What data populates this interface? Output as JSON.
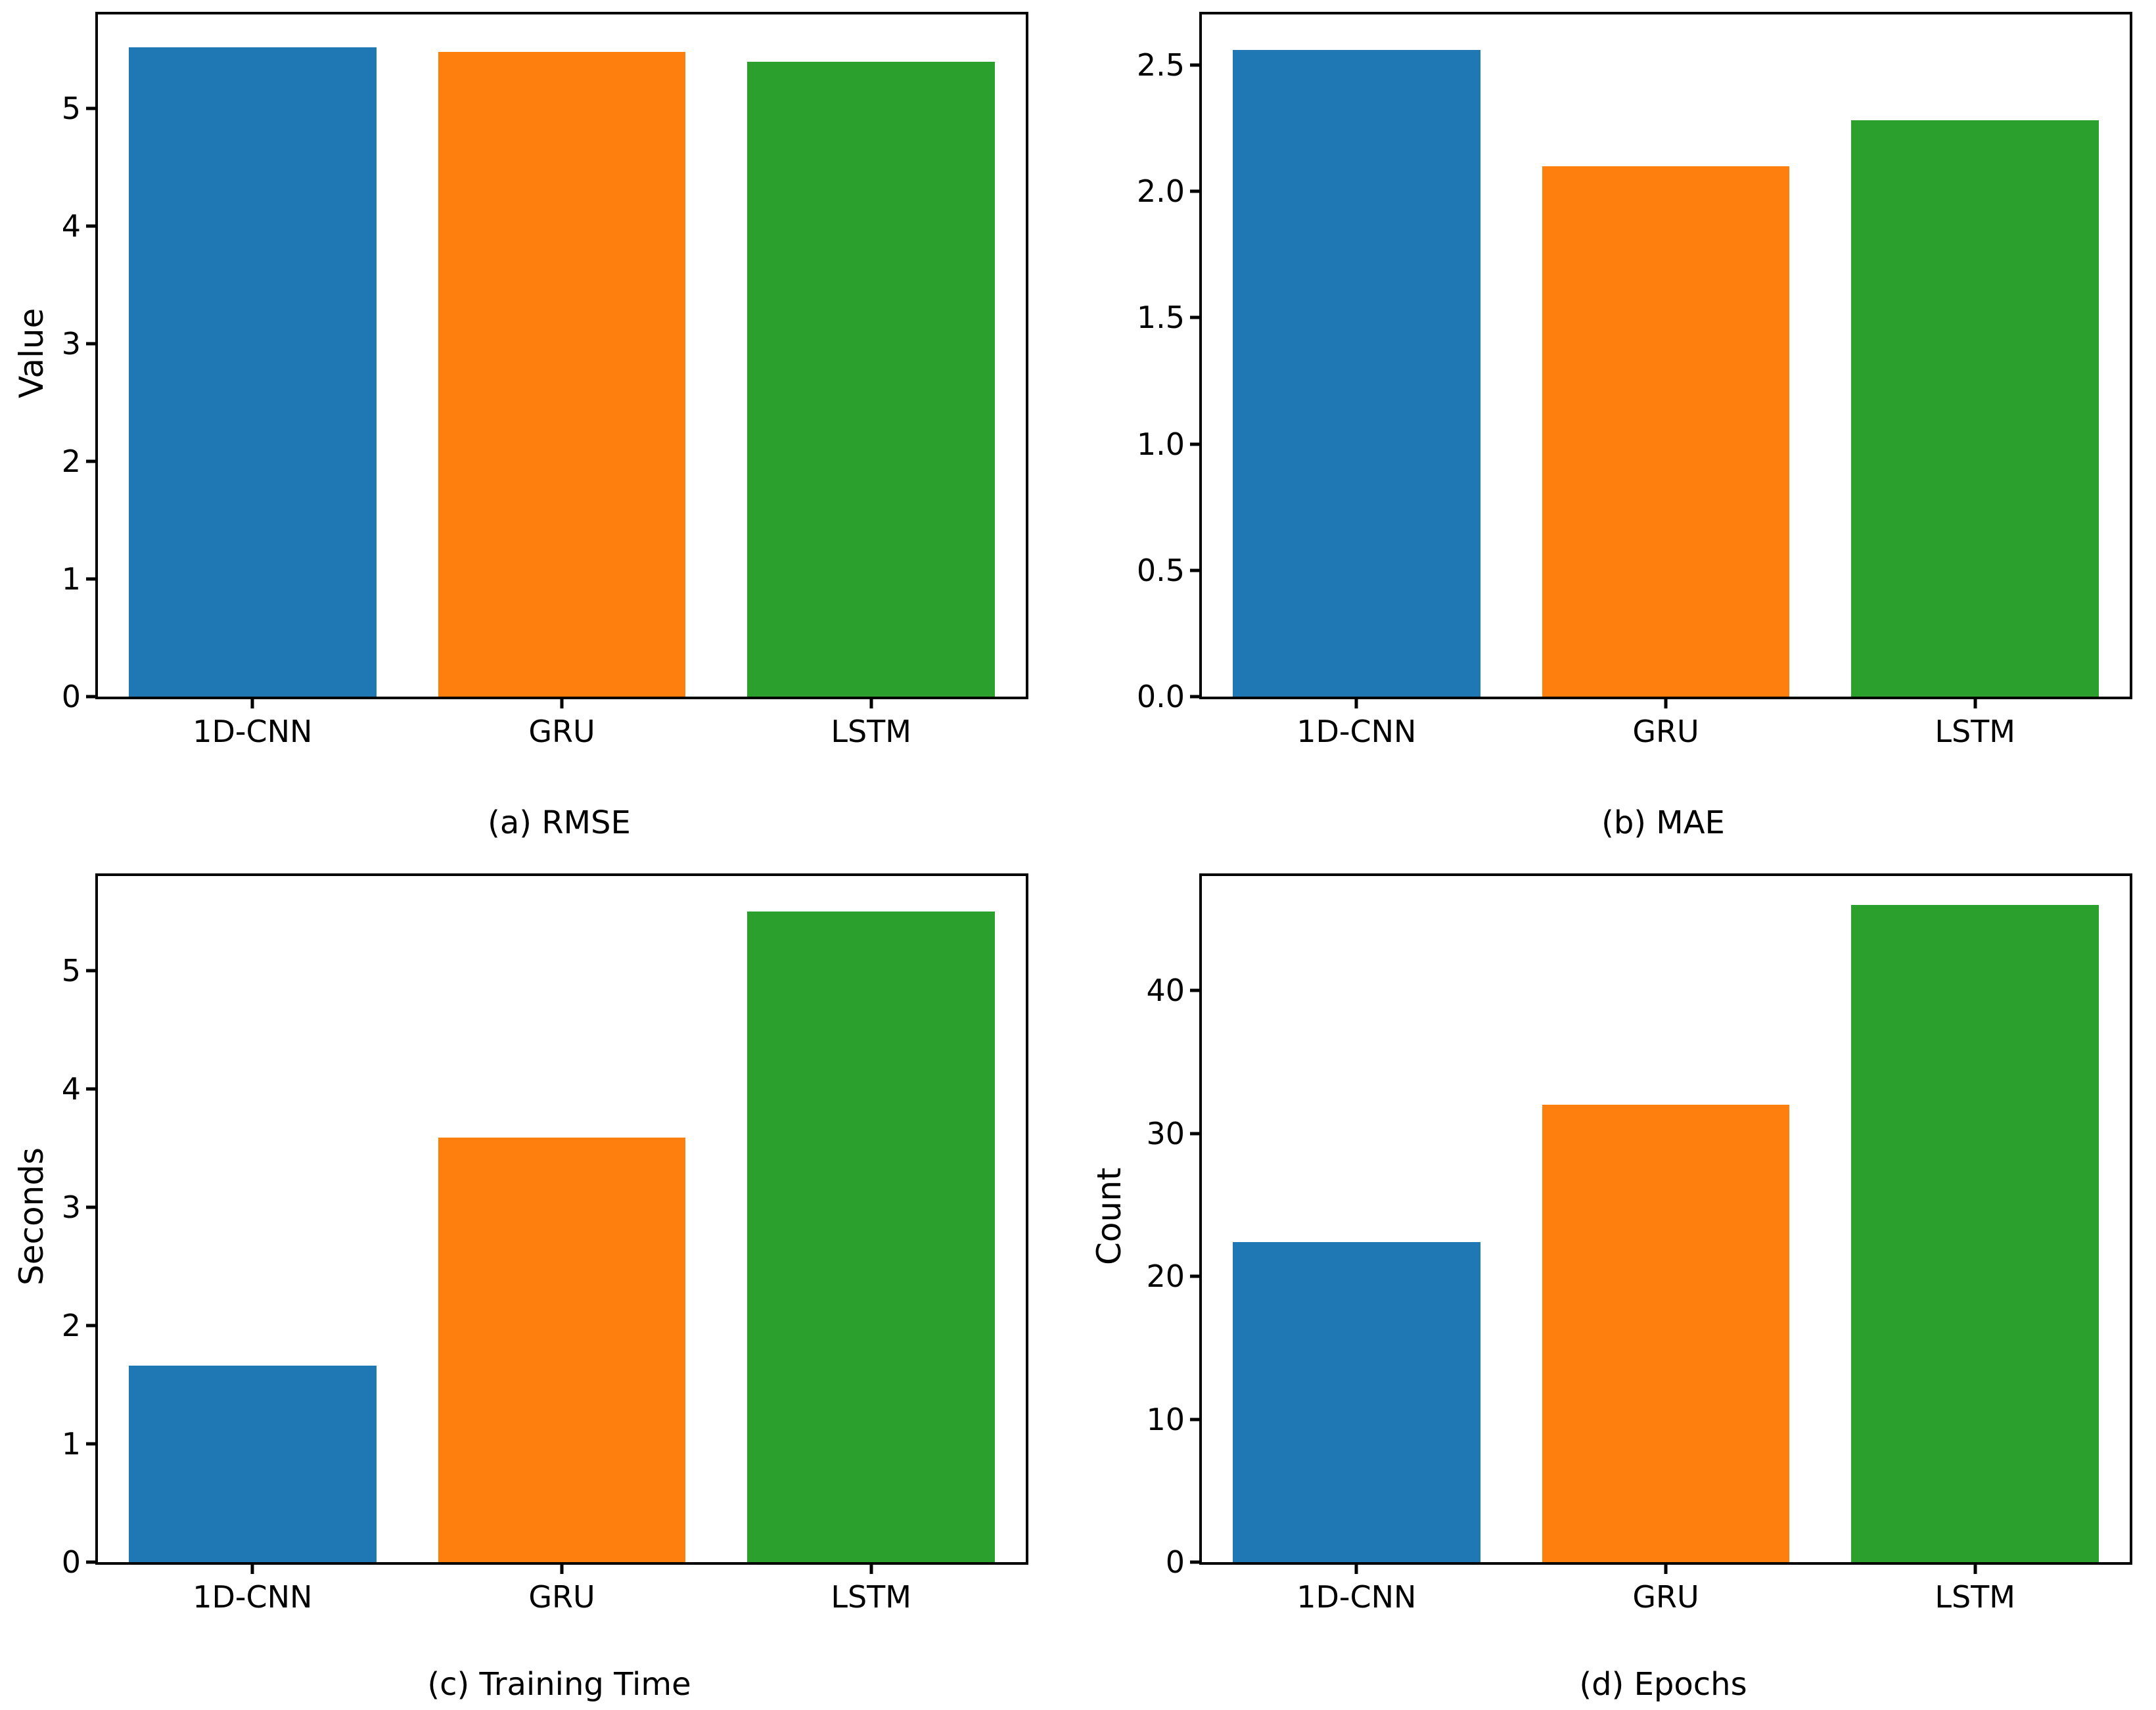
{
  "figure": {
    "background": "#ffffff",
    "text_color": "#000000",
    "layout": "2x2-grid-of-bar-charts"
  },
  "palette": {
    "blue": "#1f77b4",
    "orange": "#ff7f0e",
    "green": "#2ca02c"
  },
  "chart_data": [
    {
      "type": "bar",
      "panel": "a",
      "caption": "(a) RMSE",
      "ylabel": "Value",
      "xlabel": "",
      "categories": [
        "1D-CNN",
        "GRU",
        "LSTM"
      ],
      "values": [
        5.52,
        5.48,
        5.4
      ],
      "ylim": [
        0,
        5.8
      ],
      "yticks": [
        {
          "v": 0,
          "label": "0"
        },
        {
          "v": 1,
          "label": "1"
        },
        {
          "v": 2,
          "label": "2"
        },
        {
          "v": 3,
          "label": "3"
        },
        {
          "v": 4,
          "label": "4"
        },
        {
          "v": 5,
          "label": "5"
        }
      ],
      "bar_colors": [
        "#1f77b4",
        "#ff7f0e",
        "#2ca02c"
      ],
      "bar_width": 0.8,
      "grid": false,
      "legend": null
    },
    {
      "type": "bar",
      "panel": "b",
      "caption": "(b) MAE",
      "ylabel": "",
      "xlabel": "",
      "categories": [
        "1D-CNN",
        "GRU",
        "LSTM"
      ],
      "values": [
        2.56,
        2.1,
        2.28
      ],
      "ylim": [
        0,
        2.7
      ],
      "yticks": [
        {
          "v": 0,
          "label": "0.0"
        },
        {
          "v": 0.5,
          "label": "0.5"
        },
        {
          "v": 1,
          "label": "1.0"
        },
        {
          "v": 1.5,
          "label": "1.5"
        },
        {
          "v": 2,
          "label": "2.0"
        },
        {
          "v": 2.5,
          "label": "2.5"
        }
      ],
      "bar_colors": [
        "#1f77b4",
        "#ff7f0e",
        "#2ca02c"
      ],
      "bar_width": 0.8,
      "grid": false,
      "legend": null
    },
    {
      "type": "bar",
      "panel": "c",
      "caption": "(c) Training Time",
      "ylabel": "Seconds",
      "xlabel": "",
      "categories": [
        "1D-CNN",
        "GRU",
        "LSTM"
      ],
      "values": [
        1.66,
        3.59,
        5.5
      ],
      "ylim": [
        0,
        5.8
      ],
      "yticks": [
        {
          "v": 0,
          "label": "0"
        },
        {
          "v": 1,
          "label": "1"
        },
        {
          "v": 2,
          "label": "2"
        },
        {
          "v": 3,
          "label": "3"
        },
        {
          "v": 4,
          "label": "4"
        },
        {
          "v": 5,
          "label": "5"
        }
      ],
      "bar_colors": [
        "#1f77b4",
        "#ff7f0e",
        "#2ca02c"
      ],
      "bar_width": 0.8,
      "grid": false,
      "legend": null
    },
    {
      "type": "bar",
      "panel": "d",
      "caption": "(d) Epochs",
      "ylabel": "Count",
      "xlabel": "",
      "categories": [
        "1D-CNN",
        "GRU",
        "LSTM"
      ],
      "values": [
        22.4,
        32,
        46
      ],
      "ylim": [
        0,
        48
      ],
      "yticks": [
        {
          "v": 0,
          "label": "0"
        },
        {
          "v": 10,
          "label": "10"
        },
        {
          "v": 20,
          "label": "20"
        },
        {
          "v": 30,
          "label": "30"
        },
        {
          "v": 40,
          "label": "40"
        }
      ],
      "bar_colors": [
        "#1f77b4",
        "#ff7f0e",
        "#2ca02c"
      ],
      "bar_width": 0.8,
      "grid": false,
      "legend": null
    }
  ]
}
